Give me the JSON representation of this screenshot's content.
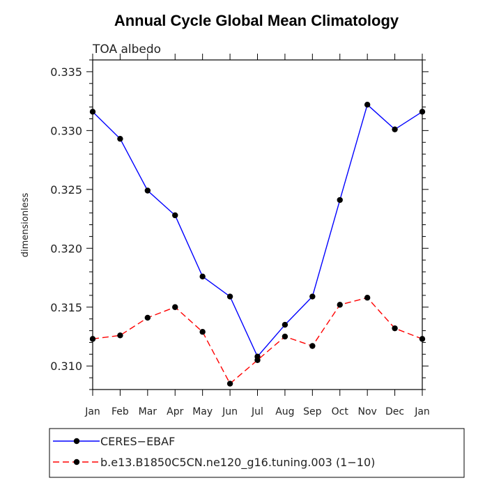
{
  "chart_data": {
    "type": "line",
    "title": "Annual Cycle Global Mean Climatology",
    "subtitle": "TOA albedo",
    "ylabel": "dimensionless",
    "xlabel": "",
    "categories": [
      "Jan",
      "Feb",
      "Mar",
      "Apr",
      "May",
      "Jun",
      "Jul",
      "Aug",
      "Sep",
      "Oct",
      "Nov",
      "Dec",
      "Jan"
    ],
    "ylim": [
      0.308,
      0.336
    ],
    "yticks": [
      "0.310",
      "0.315",
      "0.320",
      "0.325",
      "0.330",
      "0.335"
    ],
    "grid": false,
    "legend_position": "bottom",
    "series": [
      {
        "name": "CERES−EBAF",
        "color": "#0000ff",
        "dash": "solid",
        "values": [
          0.3316,
          0.3293,
          0.3249,
          0.3228,
          0.3176,
          0.3159,
          0.3108,
          0.3135,
          0.3159,
          0.3241,
          0.3322,
          0.3301,
          0.3316
        ]
      },
      {
        "name": "b.e13.B1850C5CN.ne120_g16.tuning.003 (1−10)",
        "color": "#ff0000",
        "dash": "dashed",
        "values": [
          0.3123,
          0.3126,
          0.3141,
          0.315,
          0.3129,
          0.3085,
          0.3105,
          0.3125,
          0.3117,
          0.3152,
          0.3158,
          0.3132,
          0.3123
        ]
      }
    ]
  }
}
